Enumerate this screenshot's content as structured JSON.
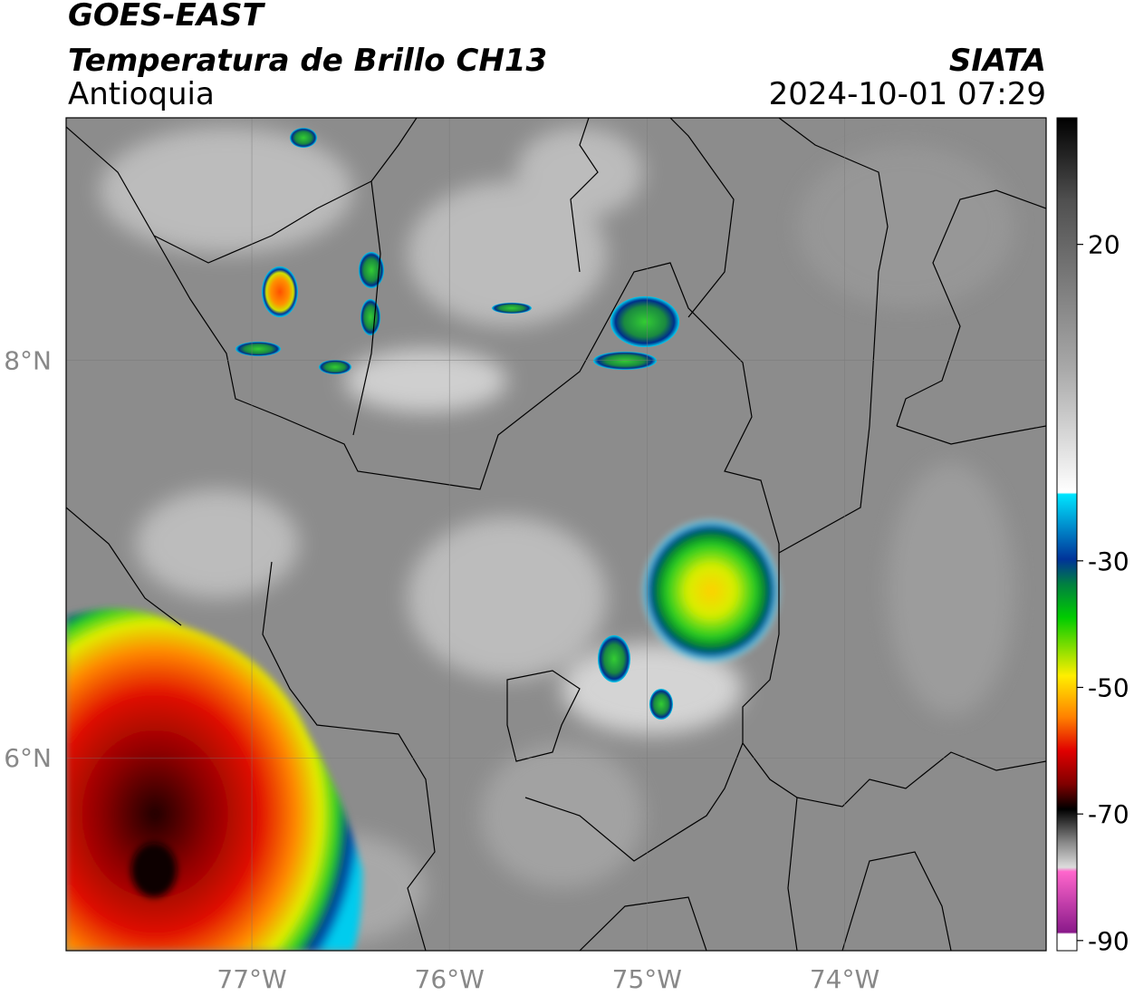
{
  "header": {
    "title": "GOES-EAST",
    "subtitle": "Temperatura de Brillo CH13",
    "region": "Antioquia",
    "source": "SIATA",
    "datetime": "2024-10-01 07:29"
  },
  "map": {
    "xlim": [
      -77.94,
      -72.98
    ],
    "ylim": [
      5.03,
      9.22
    ],
    "xticks": [
      {
        "value": -77,
        "label": "77°W"
      },
      {
        "value": -76,
        "label": "76°W"
      },
      {
        "value": -75,
        "label": "75°W"
      },
      {
        "value": -74,
        "label": "74°W"
      }
    ],
    "yticks": [
      {
        "value": 8,
        "label": "8°N"
      },
      {
        "value": 6,
        "label": "6°N"
      }
    ]
  },
  "colorbar": {
    "lim": [
      -91.6,
      40
    ],
    "ticks": [
      20,
      -30,
      -50,
      -70,
      -90
    ]
  }
}
